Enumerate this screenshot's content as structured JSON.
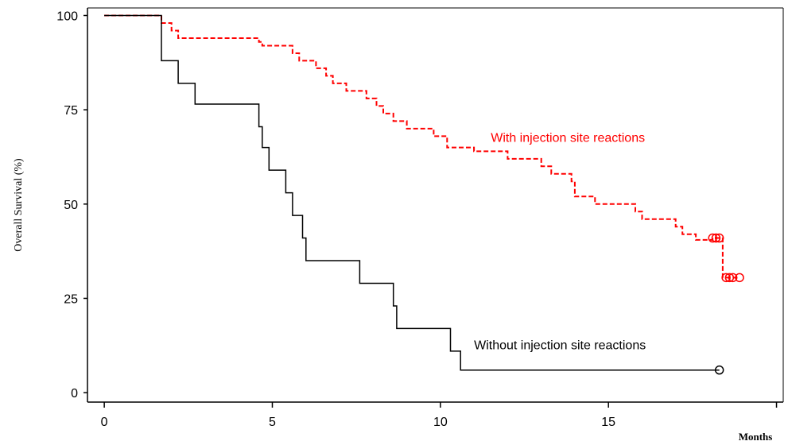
{
  "chart_data": {
    "type": "line",
    "title": "",
    "xlabel": "Months",
    "ylabel": "Overall Survival  (%)",
    "xlim": [
      -0.5,
      20.2
    ],
    "ylim": [
      -2.5,
      102
    ],
    "xticks": [
      0,
      5,
      10,
      15
    ],
    "yticks": [
      0,
      25,
      50,
      75,
      100
    ],
    "grid": false,
    "legend": "none",
    "series": [
      {
        "name": "With injection site reactions",
        "color": "#ff0000",
        "style": "dashed",
        "step_points": [
          [
            0.0,
            100
          ],
          [
            1.7,
            98
          ],
          [
            2.0,
            96
          ],
          [
            2.2,
            94
          ],
          [
            4.6,
            93
          ],
          [
            4.7,
            92
          ],
          [
            5.6,
            90
          ],
          [
            5.8,
            88
          ],
          [
            6.3,
            86
          ],
          [
            6.6,
            84
          ],
          [
            6.8,
            82
          ],
          [
            7.2,
            80
          ],
          [
            7.8,
            78
          ],
          [
            8.1,
            76
          ],
          [
            8.3,
            74
          ],
          [
            8.6,
            72
          ],
          [
            9.0,
            70
          ],
          [
            9.8,
            68
          ],
          [
            10.2,
            65
          ],
          [
            11.0,
            64
          ],
          [
            12.0,
            62
          ],
          [
            13.0,
            60
          ],
          [
            13.3,
            58
          ],
          [
            13.9,
            56
          ],
          [
            14.0,
            52
          ],
          [
            14.6,
            50
          ],
          [
            15.8,
            48
          ],
          [
            16.0,
            46
          ],
          [
            17.0,
            44
          ],
          [
            17.2,
            42
          ],
          [
            17.6,
            40.5
          ],
          [
            18.1,
            41
          ],
          [
            18.4,
            30.5
          ],
          [
            18.9,
            30.5
          ]
        ],
        "censor_points": [
          [
            18.1,
            41
          ],
          [
            18.2,
            41
          ],
          [
            18.3,
            41
          ],
          [
            18.5,
            30.5
          ],
          [
            18.6,
            30.5
          ],
          [
            18.7,
            30.5
          ],
          [
            18.9,
            30.5
          ]
        ]
      },
      {
        "name": "Without injection site reactions",
        "color": "#000000",
        "style": "solid",
        "step_points": [
          [
            0.0,
            100
          ],
          [
            1.7,
            88
          ],
          [
            2.2,
            82
          ],
          [
            2.7,
            76.5
          ],
          [
            4.6,
            70.5
          ],
          [
            4.7,
            65
          ],
          [
            4.9,
            59
          ],
          [
            5.4,
            53
          ],
          [
            5.6,
            47
          ],
          [
            5.9,
            41
          ],
          [
            6.0,
            35
          ],
          [
            7.6,
            29
          ],
          [
            8.6,
            23
          ],
          [
            8.7,
            17
          ],
          [
            10.3,
            11
          ],
          [
            10.6,
            6
          ],
          [
            18.3,
            6
          ]
        ],
        "censor_points": [
          [
            18.3,
            6
          ]
        ]
      }
    ],
    "annotations": [
      {
        "text": "With injection site reactions",
        "x": 11.5,
        "y": 66.5,
        "color": "#ff0000"
      },
      {
        "text": "Without injection site reactions",
        "x": 11.0,
        "y": 11.5,
        "color": "#000000"
      }
    ]
  }
}
